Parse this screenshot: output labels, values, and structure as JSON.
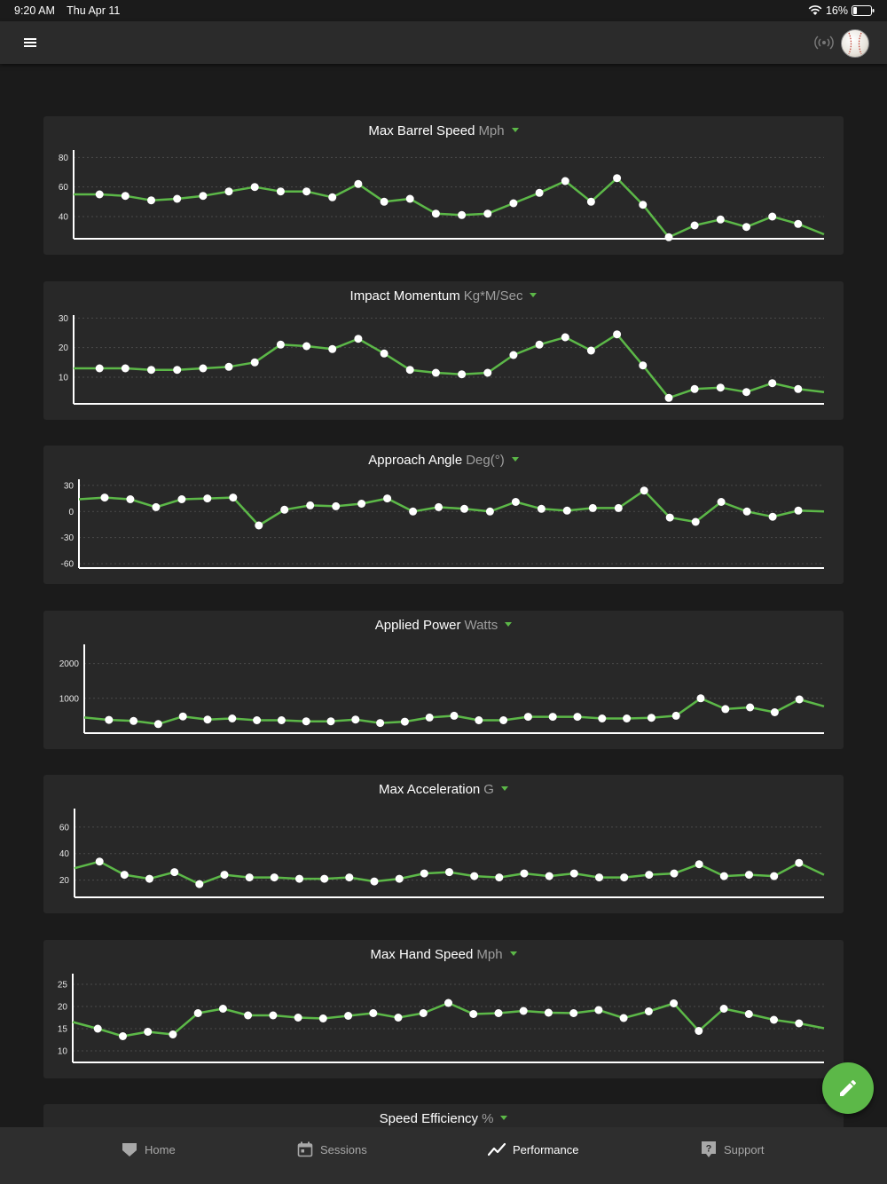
{
  "status_bar": {
    "time": "9:20 AM",
    "date": "Thu Apr 11",
    "battery": "16%"
  },
  "header": {
    "menu_icon": "hamburger-menu-icon",
    "signal_icon": "sensor-signal-icon",
    "avatar_icon": "baseball-avatar-icon"
  },
  "colors": {
    "accent": "#5cb848",
    "card": "#282828",
    "background": "#1b1b1b"
  },
  "charts": [
    {
      "title": "Max Barrel Speed",
      "unit": "Mph",
      "ticks": [
        "80",
        "60",
        "40"
      ],
      "tick_values": [
        80,
        60,
        40
      ],
      "ylim": [
        25,
        85
      ],
      "values": [
        55,
        55,
        54,
        51,
        52,
        54,
        57,
        60,
        57,
        57,
        53,
        62,
        50,
        52,
        42,
        41,
        42,
        49,
        56,
        64,
        50,
        66,
        48,
        26,
        34,
        38,
        33,
        40,
        35,
        28
      ]
    },
    {
      "title": "Impact Momentum",
      "unit": "Kg*M/Sec",
      "ticks": [
        "30",
        "20",
        "10"
      ],
      "tick_values": [
        30,
        20,
        10
      ],
      "ylim": [
        1,
        31
      ],
      "values": [
        13,
        13,
        13,
        12.5,
        12.5,
        13,
        13.5,
        15,
        21,
        20.5,
        19.5,
        23,
        18,
        12.5,
        11.5,
        11,
        11.5,
        17.5,
        21,
        23.5,
        19,
        24.5,
        14,
        3,
        6,
        6.5,
        5,
        8,
        6,
        5
      ]
    },
    {
      "title": "Approach Angle",
      "unit": "Deg(°)",
      "ticks": [
        "30",
        "0",
        "-30",
        "-60"
      ],
      "tick_values": [
        30,
        0,
        -30,
        -60
      ],
      "ylim": [
        -65,
        37
      ],
      "values": [
        14,
        16,
        14,
        5,
        14,
        15,
        16,
        -16,
        2,
        7,
        6,
        9,
        15,
        0,
        5,
        3,
        0,
        11,
        3,
        1,
        4,
        4,
        24,
        -7,
        -12,
        11,
        0,
        -6,
        1,
        0
      ]
    },
    {
      "title": "Applied Power",
      "unit": "Watts",
      "ticks": [
        "2000",
        "1000"
      ],
      "tick_values": [
        2000,
        1000
      ],
      "ylim": [
        0,
        2550
      ],
      "values": [
        450,
        380,
        350,
        260,
        480,
        390,
        420,
        370,
        370,
        340,
        340,
        390,
        290,
        330,
        450,
        500,
        370,
        370,
        470,
        470,
        470,
        420,
        420,
        440,
        500,
        1000,
        690,
        740,
        600,
        970,
        770
      ]
    },
    {
      "title": "Max Acceleration",
      "unit": "G",
      "ticks": [
        "60",
        "40",
        "20"
      ],
      "tick_values": [
        60,
        40,
        20
      ],
      "ylim": [
        7,
        74
      ],
      "values": [
        29,
        34,
        24,
        21,
        26,
        17,
        24,
        22,
        22,
        21,
        21,
        22,
        19,
        21,
        25,
        26,
        23,
        22,
        25,
        23,
        25,
        22,
        22,
        24,
        25,
        32,
        23,
        24,
        23,
        33,
        24
      ]
    },
    {
      "title": "Max Hand Speed",
      "unit": "Mph",
      "ticks": [
        "25",
        "20",
        "15",
        "10"
      ],
      "tick_values": [
        25,
        20,
        15,
        10
      ],
      "ylim": [
        7.4,
        27.4
      ],
      "values": [
        16.5,
        15,
        13.3,
        14.3,
        13.7,
        18.5,
        19.5,
        18,
        18,
        17.5,
        17.3,
        17.9,
        18.5,
        17.5,
        18.5,
        20.8,
        18.3,
        18.5,
        19,
        18.6,
        18.5,
        19.2,
        17.4,
        18.9,
        20.7,
        14.5,
        19.5,
        18.3,
        17,
        16.2,
        15.1
      ]
    }
  ],
  "partial_card": {
    "title": "Speed Efficiency",
    "unit": "%"
  },
  "fab": {
    "icon": "pencil-edit-icon"
  },
  "nav": [
    {
      "label": "Home",
      "icon": "home-shield-icon"
    },
    {
      "label": "Sessions",
      "icon": "calendar-icon"
    },
    {
      "label": "Performance",
      "icon": "trend-line-icon"
    },
    {
      "label": "Support",
      "icon": "help-question-icon"
    }
  ]
}
